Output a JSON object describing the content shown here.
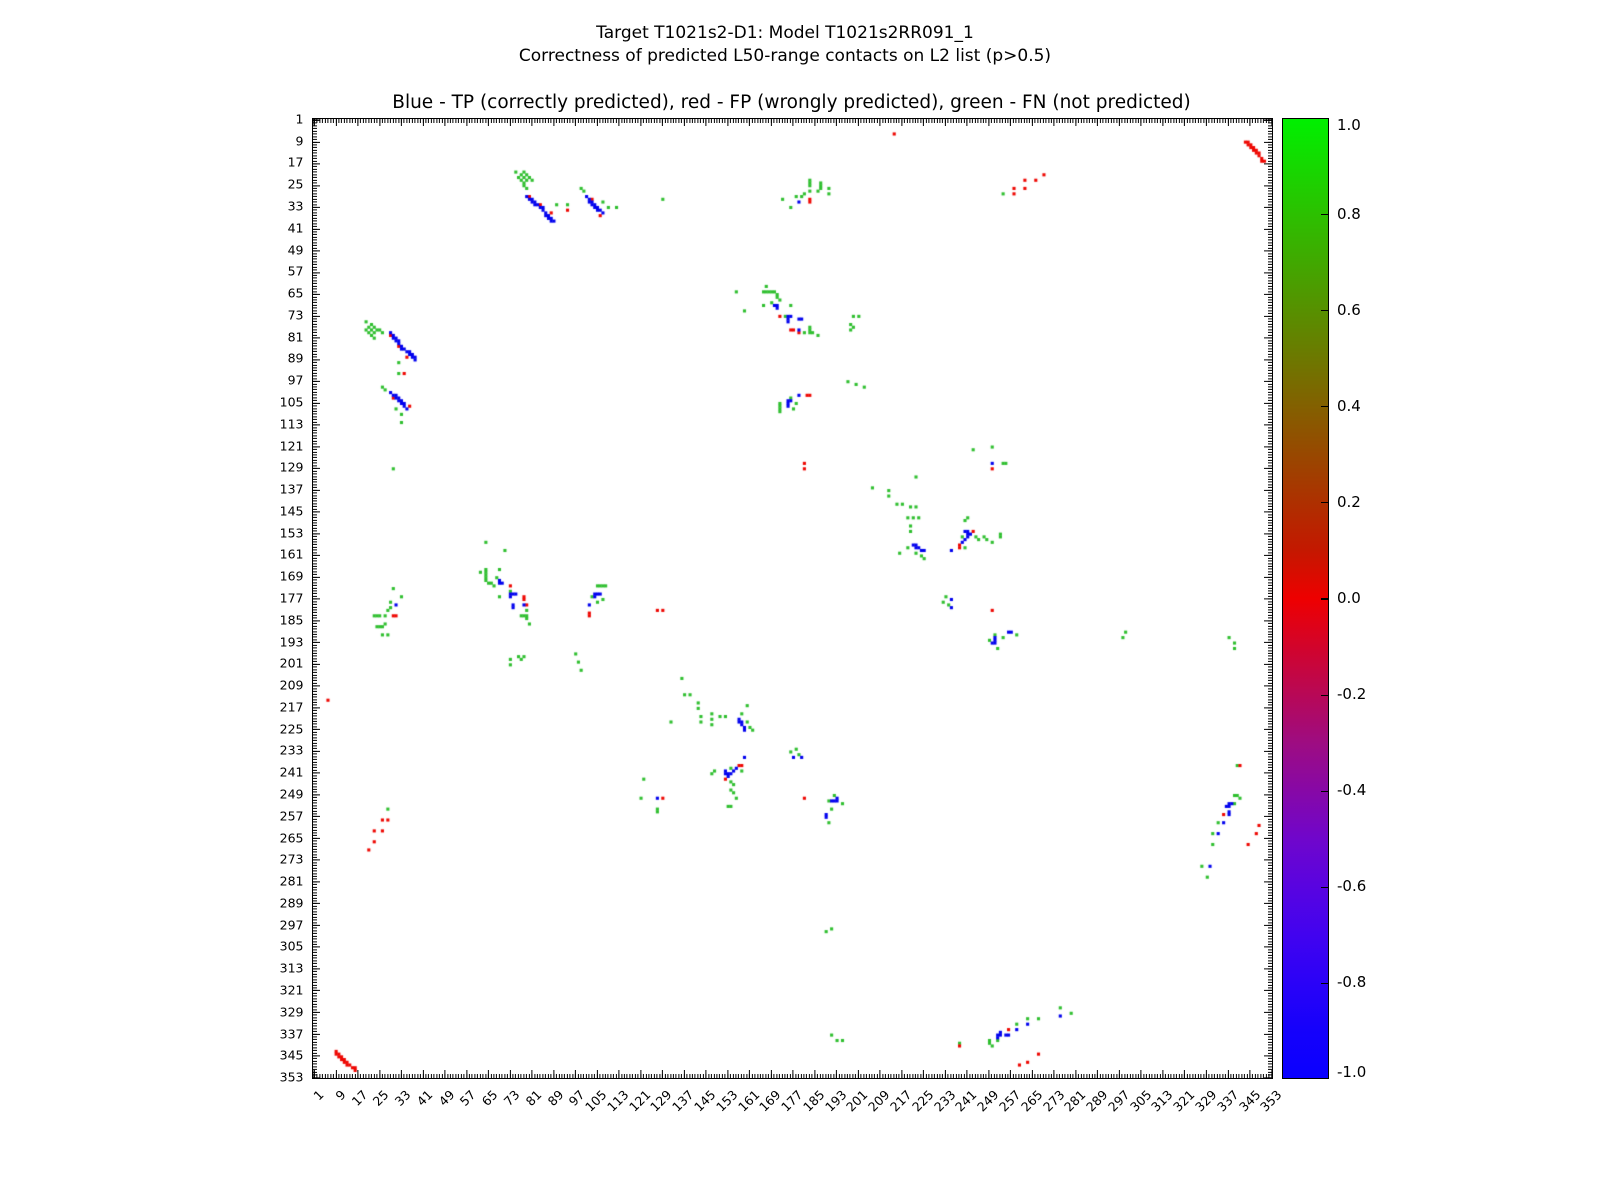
{
  "figure": {
    "title_line1": "Target T1021s2-D1: Model T1021s2RR091_1",
    "title_line2": "Correctness of predicted L50-range contacts on L2 list (p>0.5)",
    "axes_title": "Blue - TP (correctly predicted), red - FP (wrongly predicted), green - FN (not predicted)"
  },
  "chart_data": {
    "type": "scatter",
    "title": "Blue - TP (correctly predicted), red - FP (wrongly predicted), green - FN (not predicted)",
    "xlabel": "",
    "ylabel": "",
    "axis": {
      "min": 1,
      "max": 353,
      "tick_step": 8,
      "ticks": [
        1,
        9,
        17,
        25,
        33,
        41,
        49,
        57,
        65,
        73,
        81,
        89,
        97,
        105,
        113,
        121,
        129,
        137,
        145,
        153,
        161,
        169,
        177,
        185,
        193,
        201,
        209,
        217,
        225,
        233,
        241,
        249,
        257,
        265,
        273,
        281,
        289,
        297,
        305,
        313,
        321,
        329,
        337,
        345,
        353
      ],
      "grid": false,
      "y_inverted": true,
      "minor_ticks_every": 1
    },
    "colorbar": {
      "position": "right",
      "tick_labels": [
        "1.0",
        "0.8",
        "0.6",
        "0.4",
        "0.2",
        "0.0",
        "-0.2",
        "-0.4",
        "-0.6",
        "-0.8",
        "-1.0"
      ],
      "tick_values": [
        1.0,
        0.8,
        0.6,
        0.4,
        0.2,
        0.0,
        -0.2,
        -0.4,
        -0.6,
        -0.8,
        -1.0
      ],
      "gradient_stops_top_to_bottom": [
        "#00f000",
        "#16d800",
        "#2cc000",
        "#41a800",
        "#579000",
        "#6d7800",
        "#836000",
        "#984800",
        "#ae3000",
        "#c41800",
        "#ee0000",
        "#d2042b",
        "#b80856",
        "#9e0c81",
        "#8708a6",
        "#7006cb",
        "#5904e0",
        "#4203ef",
        "#2b02f7",
        "#1501fb",
        "#0a00ff"
      ]
    },
    "legend": {
      "tp_label": "TP (correctly predicted)",
      "fp_label": "FP (wrongly predicted)",
      "fn_label": "FN (not predicted)"
    },
    "colors": {
      "tp": "#0000ee",
      "fp": "#ee0600",
      "fn": "#2fbf2f"
    },
    "symmetric_mirror": true,
    "points": {
      "fn": [
        [
          20,
          75
        ],
        [
          20,
          78
        ],
        [
          21,
          77
        ],
        [
          21,
          79
        ],
        [
          22,
          76
        ],
        [
          22,
          78
        ],
        [
          22,
          80
        ],
        [
          23,
          77
        ],
        [
          23,
          79
        ],
        [
          23,
          81
        ],
        [
          24,
          78
        ],
        [
          25,
          78
        ],
        [
          26,
          79
        ],
        [
          32,
          90
        ],
        [
          32,
          94
        ],
        [
          30,
          129
        ],
        [
          26,
          99
        ],
        [
          27,
          100
        ],
        [
          31,
          107
        ],
        [
          33,
          109
        ],
        [
          33,
          112
        ],
        [
          23,
          183
        ],
        [
          24,
          183
        ],
        [
          25,
          183
        ],
        [
          24,
          187
        ],
        [
          25,
          187
        ],
        [
          26,
          187
        ],
        [
          27,
          186
        ],
        [
          26,
          190
        ],
        [
          28,
          190
        ],
        [
          29,
          178
        ],
        [
          28,
          181
        ],
        [
          29,
          180
        ],
        [
          27,
          183
        ],
        [
          30,
          173
        ],
        [
          33,
          176
        ],
        [
          28,
          254
        ],
        [
          62,
          167
        ],
        [
          64,
          156
        ],
        [
          64,
          166
        ],
        [
          64,
          167
        ],
        [
          64,
          168
        ],
        [
          64,
          169
        ],
        [
          64,
          170
        ],
        [
          65,
          171
        ],
        [
          66,
          171
        ],
        [
          67,
          172
        ],
        [
          68,
          169
        ],
        [
          69,
          166
        ],
        [
          71,
          159
        ],
        [
          69,
          176
        ],
        [
          73,
          174
        ],
        [
          77,
          183
        ],
        [
          78,
          183
        ],
        [
          79,
          183
        ],
        [
          79,
          184
        ],
        [
          80,
          186
        ],
        [
          79,
          181
        ],
        [
          73,
          199
        ],
        [
          73,
          201
        ],
        [
          76,
          198
        ],
        [
          77,
          199
        ],
        [
          78,
          198
        ],
        [
          103,
          176
        ],
        [
          105,
          172
        ],
        [
          106,
          172
        ],
        [
          107,
          172
        ],
        [
          108,
          172
        ],
        [
          105,
          178
        ],
        [
          107,
          177
        ],
        [
          97,
          197
        ],
        [
          98,
          200
        ],
        [
          99,
          203
        ],
        [
          122,
          243
        ],
        [
          121,
          250
        ],
        [
          127,
          254
        ],
        [
          127,
          255
        ],
        [
          132,
          222
        ],
        [
          136,
          206
        ],
        [
          137,
          212
        ],
        [
          139,
          212
        ],
        [
          142,
          215
        ],
        [
          142,
          217
        ],
        [
          143,
          220
        ],
        [
          143,
          222
        ],
        [
          147,
          219
        ],
        [
          147,
          221
        ],
        [
          147,
          223
        ],
        [
          150,
          220
        ],
        [
          152,
          220
        ],
        [
          158,
          219
        ],
        [
          160,
          216
        ],
        [
          160,
          222
        ],
        [
          161,
          224
        ],
        [
          162,
          225
        ],
        [
          147,
          241
        ],
        [
          148,
          240
        ],
        [
          154,
          239
        ],
        [
          154,
          244
        ],
        [
          155,
          245
        ],
        [
          155,
          248
        ],
        [
          158,
          240
        ],
        [
          154,
          247
        ],
        [
          156,
          250
        ],
        [
          153,
          253
        ],
        [
          154,
          253
        ],
        [
          192,
          249
        ],
        [
          190,
          251
        ],
        [
          195,
          252
        ],
        [
          190,
          259
        ],
        [
          191,
          254
        ],
        [
          189,
          299
        ],
        [
          191,
          298
        ],
        [
          191,
          337
        ],
        [
          193,
          339
        ],
        [
          195,
          339
        ],
        [
          232,
          178
        ],
        [
          233,
          176
        ],
        [
          234,
          179
        ],
        [
          238,
          340
        ],
        [
          249,
          339
        ],
        [
          249,
          340
        ],
        [
          250,
          341
        ],
        [
          252,
          339
        ],
        [
          259,
          333
        ],
        [
          263,
          331
        ],
        [
          267,
          331
        ],
        [
          275,
          327
        ],
        [
          279,
          329
        ]
      ],
      "fp": [
        [
          9,
          343
        ],
        [
          9,
          344
        ],
        [
          10,
          344
        ],
        [
          10,
          345
        ],
        [
          11,
          345
        ],
        [
          11,
          346
        ],
        [
          12,
          346
        ],
        [
          12,
          347
        ],
        [
          13,
          347
        ],
        [
          13,
          348
        ],
        [
          14,
          348
        ],
        [
          15,
          349
        ],
        [
          16,
          349
        ],
        [
          16,
          350
        ],
        [
          6,
          214
        ],
        [
          29,
          80
        ],
        [
          32,
          84
        ],
        [
          35,
          88
        ],
        [
          34,
          94
        ],
        [
          30,
          103
        ],
        [
          36,
          106
        ],
        [
          30,
          183
        ],
        [
          31,
          183
        ],
        [
          28,
          258
        ],
        [
          26,
          258
        ],
        [
          26,
          262
        ],
        [
          23,
          262
        ],
        [
          23,
          266
        ],
        [
          21,
          269
        ],
        [
          73,
          172
        ],
        [
          78,
          176
        ],
        [
          78,
          177
        ],
        [
          79,
          179
        ],
        [
          102,
          182
        ],
        [
          102,
          183
        ],
        [
          129,
          250
        ],
        [
          127,
          181
        ],
        [
          129,
          181
        ],
        [
          152,
          243
        ],
        [
          157,
          238
        ],
        [
          158,
          238
        ],
        [
          181,
          250
        ],
        [
          238,
          341
        ],
        [
          256,
          335
        ],
        [
          260,
          348
        ],
        [
          263,
          347
        ],
        [
          267,
          344
        ]
      ],
      "tp": [
        [
          29,
          79
        ],
        [
          30,
          80
        ],
        [
          30,
          81
        ],
        [
          31,
          81
        ],
        [
          31,
          82
        ],
        [
          32,
          82
        ],
        [
          32,
          83
        ],
        [
          33,
          84
        ],
        [
          33,
          85
        ],
        [
          34,
          85
        ],
        [
          35,
          86
        ],
        [
          36,
          86
        ],
        [
          36,
          87
        ],
        [
          37,
          87
        ],
        [
          37,
          88
        ],
        [
          38,
          88
        ],
        [
          38,
          89
        ],
        [
          29,
          101
        ],
        [
          30,
          102
        ],
        [
          31,
          102
        ],
        [
          31,
          103
        ],
        [
          32,
          103
        ],
        [
          32,
          104
        ],
        [
          33,
          104
        ],
        [
          33,
          105
        ],
        [
          34,
          105
        ],
        [
          34,
          106
        ],
        [
          35,
          107
        ],
        [
          31,
          179
        ],
        [
          69,
          170
        ],
        [
          69,
          171
        ],
        [
          70,
          171
        ],
        [
          73,
          175
        ],
        [
          73,
          176
        ],
        [
          74,
          175
        ],
        [
          75,
          175
        ],
        [
          74,
          179
        ],
        [
          74,
          180
        ],
        [
          78,
          179
        ],
        [
          104,
          175
        ],
        [
          104,
          176
        ],
        [
          105,
          175
        ],
        [
          106,
          175
        ],
        [
          102,
          179
        ],
        [
          127,
          250
        ],
        [
          157,
          221
        ],
        [
          157,
          222
        ],
        [
          158,
          222
        ],
        [
          158,
          223
        ],
        [
          159,
          224
        ],
        [
          159,
          225
        ],
        [
          159,
          235
        ],
        [
          152,
          240
        ],
        [
          152,
          241
        ],
        [
          153,
          241
        ],
        [
          153,
          242
        ],
        [
          154,
          241
        ],
        [
          155,
          240
        ],
        [
          156,
          239
        ],
        [
          191,
          251
        ],
        [
          192,
          251
        ],
        [
          193,
          251
        ],
        [
          193,
          250
        ],
        [
          189,
          256
        ],
        [
          189,
          257
        ],
        [
          235,
          177
        ],
        [
          235,
          180
        ],
        [
          252,
          337
        ],
        [
          252,
          338
        ],
        [
          253,
          336
        ],
        [
          253,
          337
        ],
        [
          255,
          337
        ],
        [
          256,
          337
        ],
        [
          259,
          335
        ],
        [
          263,
          333
        ],
        [
          275,
          330
        ]
      ]
    }
  }
}
